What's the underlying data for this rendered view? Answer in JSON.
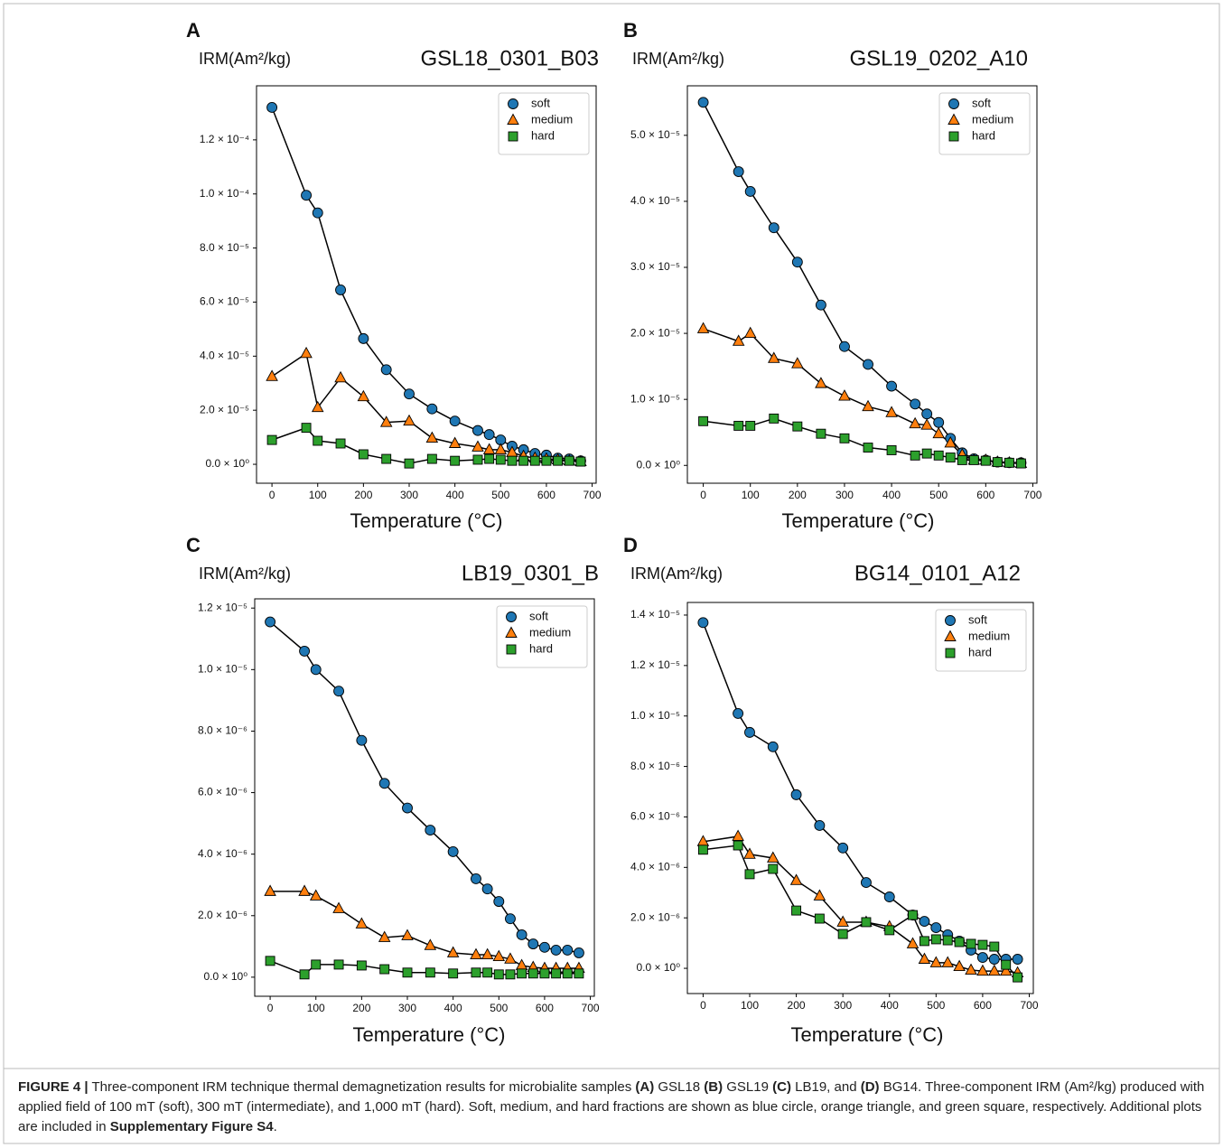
{
  "chart_data": [
    {
      "type": "line",
      "panel_label": "A",
      "sample": "GSL18_0301_B03",
      "ylabel": "IRM(Am²/kg)",
      "xlabel": "Temperature (°C)",
      "legend": "upper right",
      "x": [
        0,
        75,
        100,
        150,
        200,
        250,
        300,
        350,
        400,
        450,
        475,
        500,
        525,
        550,
        575,
        600,
        625,
        650,
        675
      ],
      "series": [
        {
          "name": "soft",
          "color": "#1f77b4",
          "marker": "circle",
          "values": [
            0.000132,
            9.95e-05,
            9.3e-05,
            6.45e-05,
            4.65e-05,
            3.5e-05,
            2.6e-05,
            2.05e-05,
            1.6e-05,
            1.25e-05,
            1.1e-05,
            9e-06,
            6.7e-06,
            5.4e-06,
            4e-06,
            3.4e-06,
            2.3e-06,
            2e-06,
            1.3e-06
          ]
        },
        {
          "name": "medium",
          "color": "#ff7f0e",
          "marker": "triangle",
          "values": [
            3.25e-05,
            4.1e-05,
            2.1e-05,
            3.2e-05,
            2.5e-05,
            1.55e-05,
            1.6e-05,
            9.7e-06,
            7.7e-06,
            6.4e-06,
            5.4e-06,
            5.4e-06,
            4.4e-06,
            3e-06,
            2.3e-06,
            2e-06,
            1.7e-06,
            1.3e-06,
            1e-06
          ]
        },
        {
          "name": "hard",
          "color": "#2ca02c",
          "marker": "square",
          "values": [
            9e-06,
            1.35e-05,
            8.7e-06,
            7.7e-06,
            3.7e-06,
            2e-06,
            3e-07,
            2e-06,
            1.3e-06,
            1.7e-06,
            2e-06,
            1.7e-06,
            1.3e-06,
            1.3e-06,
            1.3e-06,
            1.3e-06,
            1.3e-06,
            1.3e-06,
            1e-06
          ]
        }
      ],
      "xlim": [
        -33.75,
        708.75
      ],
      "ylim": [
        -7e-06,
        0.00014
      ],
      "xticks": [
        0,
        100,
        200,
        300,
        400,
        500,
        600,
        700
      ],
      "yticks": [
        {
          "value": 0,
          "label": "0.0 × 10⁰"
        },
        {
          "value": 2e-05,
          "label": "2.0 × 10⁻⁵"
        },
        {
          "value": 4e-05,
          "label": "4.0 × 10⁻⁵"
        },
        {
          "value": 6e-05,
          "label": "6.0 × 10⁻⁵"
        },
        {
          "value": 8e-05,
          "label": "8.0 × 10⁻⁵"
        },
        {
          "value": 0.0001,
          "label": "1.0 × 10⁻⁴"
        },
        {
          "value": 0.00012,
          "label": "1.2 × 10⁻⁴"
        }
      ]
    },
    {
      "type": "line",
      "panel_label": "B",
      "sample": "GSL19_0202_A10",
      "ylabel": "IRM(Am²/kg)",
      "xlabel": "Temperature (°C)",
      "legend": "upper right",
      "x": [
        0,
        75,
        100,
        150,
        200,
        250,
        300,
        350,
        400,
        450,
        475,
        500,
        525,
        550,
        575,
        600,
        625,
        650,
        675
      ],
      "series": [
        {
          "name": "soft",
          "color": "#1f77b4",
          "marker": "circle",
          "values": [
            5.5e-05,
            4.45e-05,
            4.15e-05,
            3.6e-05,
            3.08e-05,
            2.43e-05,
            1.8e-05,
            1.53e-05,
            1.2e-05,
            9.3e-06,
            7.8e-06,
            6.5e-06,
            4.1e-06,
            1.9e-06,
            1e-06,
            8e-07,
            5e-07,
            4e-07,
            4e-07
          ]
        },
        {
          "name": "medium",
          "color": "#ff7f0e",
          "marker": "triangle",
          "values": [
            2.07e-05,
            1.88e-05,
            2e-05,
            1.62e-05,
            1.54e-05,
            1.24e-05,
            1.05e-05,
            8.9e-06,
            8e-06,
            6.3e-06,
            6.1e-06,
            4.8e-06,
            3.4e-06,
            1.6e-06,
            8e-07,
            8e-07,
            5e-07,
            4e-07,
            3e-07
          ]
        },
        {
          "name": "hard",
          "color": "#2ca02c",
          "marker": "square",
          "values": [
            6.7e-06,
            6e-06,
            6e-06,
            7.1e-06,
            5.9e-06,
            4.8e-06,
            4.1e-06,
            2.7e-06,
            2.3e-06,
            1.5e-06,
            1.8e-06,
            1.5e-06,
            1.2e-06,
            8e-07,
            8e-07,
            7e-07,
            5e-07,
            4e-07,
            3e-07
          ]
        }
      ],
      "xlim": [
        -33.75,
        708.75
      ],
      "ylim": [
        -2.7e-06,
        5.75e-05
      ],
      "xticks": [
        0,
        100,
        200,
        300,
        400,
        500,
        600,
        700
      ],
      "yticks": [
        {
          "value": 0,
          "label": "0.0 × 10⁰"
        },
        {
          "value": 1e-05,
          "label": "1.0 × 10⁻⁵"
        },
        {
          "value": 2e-05,
          "label": "2.0 × 10⁻⁵"
        },
        {
          "value": 3e-05,
          "label": "3.0 × 10⁻⁵"
        },
        {
          "value": 4e-05,
          "label": "4.0 × 10⁻⁵"
        },
        {
          "value": 5e-05,
          "label": "5.0 × 10⁻⁵"
        }
      ]
    },
    {
      "type": "line",
      "panel_label": "C",
      "sample": "LB19_0301_B",
      "ylabel": "IRM(Am²/kg)",
      "xlabel": "Temperature (°C)",
      "legend": "upper right",
      "x": [
        0,
        75,
        100,
        150,
        200,
        250,
        300,
        350,
        400,
        450,
        475,
        500,
        525,
        550,
        575,
        600,
        625,
        650,
        675
      ],
      "series": [
        {
          "name": "soft",
          "color": "#1f77b4",
          "marker": "circle",
          "values": [
            1.155e-05,
            1.06e-05,
            1e-05,
            9.3e-06,
            7.7e-06,
            6.3e-06,
            5.5e-06,
            4.78e-06,
            4.08e-06,
            3.2e-06,
            2.87e-06,
            2.46e-06,
            1.9e-06,
            1.38e-06,
            1.08e-06,
            9.7e-07,
            8.8e-07,
            8.8e-07,
            7.9e-07
          ]
        },
        {
          "name": "medium",
          "color": "#ff7f0e",
          "marker": "triangle",
          "values": [
            2.79e-06,
            2.79e-06,
            2.64e-06,
            2.23e-06,
            1.73e-06,
            1.29e-06,
            1.35e-06,
            1.03e-06,
            7.9e-07,
            7.3e-07,
            7.3e-07,
            6.7e-07,
            5.9e-07,
            3.8e-07,
            3.2e-07,
            2.9e-07,
            2.9e-07,
            2.9e-07,
            2.9e-07
          ]
        },
        {
          "name": "hard",
          "color": "#2ca02c",
          "marker": "square",
          "values": [
            5.3e-07,
            9e-08,
            4.1e-07,
            4.1e-07,
            3.8e-07,
            2.6e-07,
            1.5e-07,
            1.5e-07,
            1.2e-07,
            1.5e-07,
            1.5e-07,
            9e-08,
            9e-08,
            1.2e-07,
            1.2e-07,
            1.2e-07,
            1.2e-07,
            1.2e-07,
            1.2e-07
          ]
        }
      ],
      "xlim": [
        -33.75,
        708.75
      ],
      "ylim": [
        -6.2e-07,
        1.23e-05
      ],
      "xticks": [
        0,
        100,
        200,
        300,
        400,
        500,
        600,
        700
      ],
      "yticks": [
        {
          "value": 0,
          "label": "0.0 × 10⁰"
        },
        {
          "value": 2e-06,
          "label": "2.0 × 10⁻⁶"
        },
        {
          "value": 4e-06,
          "label": "4.0 × 10⁻⁶"
        },
        {
          "value": 6e-06,
          "label": "6.0 × 10⁻⁶"
        },
        {
          "value": 8e-06,
          "label": "8.0 × 10⁻⁶"
        },
        {
          "value": 1e-05,
          "label": "1.0 × 10⁻⁵"
        },
        {
          "value": 1.2e-05,
          "label": "1.2 × 10⁻⁵"
        }
      ]
    },
    {
      "type": "line",
      "panel_label": "D",
      "sample": "BG14_0101_A12",
      "ylabel": "IRM(Am²/kg)",
      "xlabel": "Temperature (°C)",
      "legend": "upper right",
      "x": [
        0,
        75,
        100,
        150,
        200,
        250,
        300,
        350,
        400,
        450,
        475,
        500,
        525,
        550,
        575,
        600,
        625,
        650,
        675
      ],
      "series": [
        {
          "name": "soft",
          "color": "#1f77b4",
          "marker": "circle",
          "values": [
            1.37e-05,
            1.01e-05,
            9.35e-06,
            8.78e-06,
            6.88e-06,
            5.66e-06,
            4.77e-06,
            3.4e-06,
            2.83e-06,
            2.11e-06,
            1.86e-06,
            1.61e-06,
            1.33e-06,
            1.08e-06,
            7.2e-07,
            4.3e-07,
            3.6e-07,
            3.6e-07,
            3.6e-07
          ]
        },
        {
          "name": "medium",
          "color": "#ff7f0e",
          "marker": "triangle",
          "values": [
            5.02e-06,
            5.23e-06,
            4.52e-06,
            4.37e-06,
            3.48e-06,
            2.87e-06,
            1.83e-06,
            1.83e-06,
            1.65e-06,
            9.7e-07,
            3.6e-07,
            2.2e-07,
            2.2e-07,
            7e-08,
            -7e-08,
            -1.1e-07,
            -1.1e-07,
            -1.1e-07,
            -1.8e-07
          ]
        },
        {
          "name": "hard",
          "color": "#2ca02c",
          "marker": "square",
          "values": [
            4.7e-06,
            4.87e-06,
            3.73e-06,
            3.94e-06,
            2.29e-06,
            1.97e-06,
            1.36e-06,
            1.83e-06,
            1.51e-06,
            2.11e-06,
            1.08e-06,
            1.15e-06,
            1.11e-06,
            1.04e-06,
            9.7e-07,
            9.3e-07,
            8.6e-07,
            1.4e-07,
            -3.6e-07
          ]
        }
      ],
      "xlim": [
        -33.75,
        708.75
      ],
      "ylim": [
        -1e-06,
        1.45e-05
      ],
      "xticks": [
        0,
        100,
        200,
        300,
        400,
        500,
        600,
        700
      ],
      "yticks": [
        {
          "value": 0,
          "label": "0.0 × 10⁰"
        },
        {
          "value": 2e-06,
          "label": "2.0 × 10⁻⁶"
        },
        {
          "value": 4e-06,
          "label": "4.0 × 10⁻⁶"
        },
        {
          "value": 6e-06,
          "label": "6.0 × 10⁻⁶"
        },
        {
          "value": 8e-06,
          "label": "8.0 × 10⁻⁶"
        },
        {
          "value": 1e-05,
          "label": "1.0 × 10⁻⁵"
        },
        {
          "value": 1.2e-05,
          "label": "1.2 × 10⁻⁵"
        },
        {
          "value": 1.4e-05,
          "label": "1.4 × 10⁻⁵"
        }
      ]
    }
  ],
  "caption": [
    {
      "text": "FIGURE 4 |",
      "bold": true
    },
    {
      "text": " Three-component IRM technique thermal demagnetization results for microbialite samples ",
      "bold": false
    },
    {
      "text": "(A)",
      "bold": true
    },
    {
      "text": " GSL18 ",
      "bold": false
    },
    {
      "text": "(B)",
      "bold": true
    },
    {
      "text": " GSL19 ",
      "bold": false
    },
    {
      "text": "(C)",
      "bold": true
    },
    {
      "text": " LB19, and ",
      "bold": false
    },
    {
      "text": "(D)",
      "bold": true
    },
    {
      "text": " BG14. Three-component IRM (Am²/kg) produced with applied field of 100 mT (soft), 300 mT (intermediate), and 1,000 mT (hard). Soft, medium, and hard fractions are shown as blue circle, orange triangle, and green square, respectively. Additional plots are included in ",
      "bold": false
    },
    {
      "text": "Supplementary Figure S4",
      "bold": true
    },
    {
      "text": ".",
      "bold": false
    }
  ]
}
